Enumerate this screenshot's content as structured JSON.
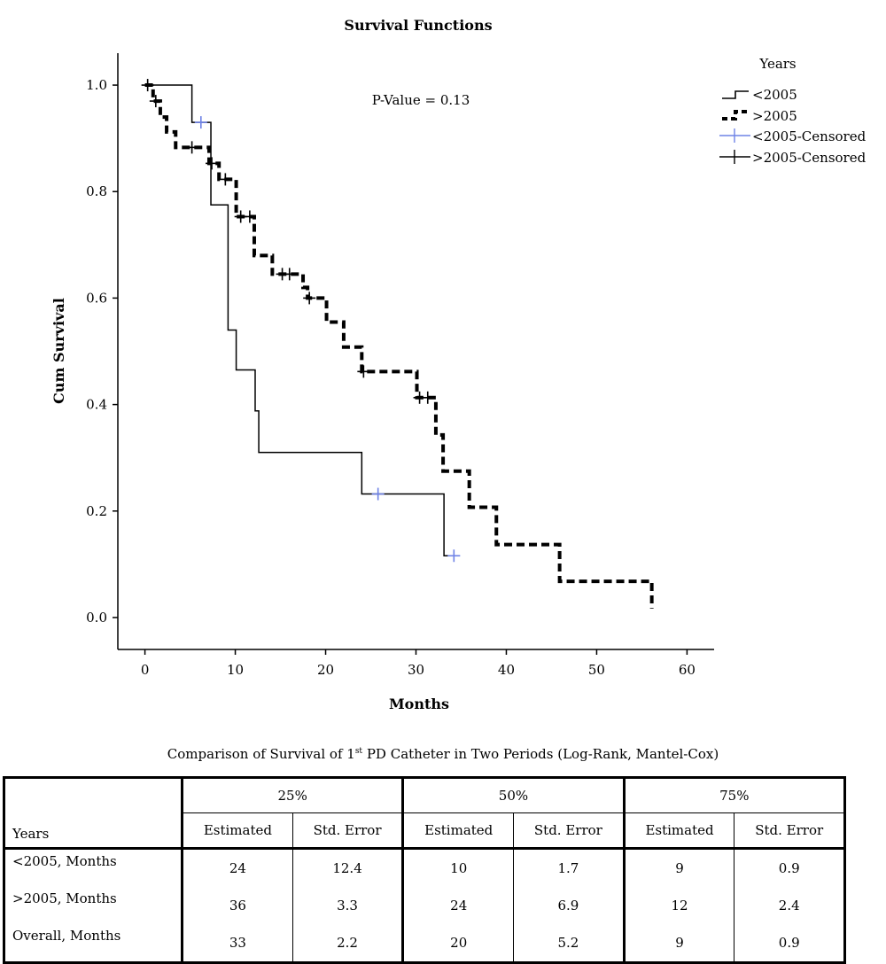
{
  "chart_data": {
    "type": "line",
    "title": "Survival Functions",
    "xlabel": "Months",
    "ylabel": "Cum Survival",
    "xlim": [
      -3,
      63
    ],
    "ylim": [
      -0.06,
      1.06
    ],
    "xticks": [
      0,
      10,
      20,
      30,
      40,
      50,
      60
    ],
    "yticks": [
      0.0,
      0.2,
      0.4,
      0.6,
      0.8,
      1.0
    ],
    "ytick_labels": [
      "0.0",
      "0.2",
      "0.4",
      "0.6",
      "0.8",
      "1.0"
    ],
    "grid": false,
    "annotation": "P-Value = 0.13",
    "legend": {
      "title": "Years",
      "placement": "top-right",
      "entries": [
        "<2005",
        ">2005",
        "<2005-Censored",
        ">2005-Censored"
      ]
    },
    "series": [
      {
        "name": "<2005",
        "style": "solid",
        "color": "#000000",
        "steps": [
          [
            0,
            1.0
          ],
          [
            5.2,
            0.93
          ],
          [
            7.3,
            0.775
          ],
          [
            9.2,
            0.54
          ],
          [
            10.1,
            0.465
          ],
          [
            12.2,
            0.388
          ],
          [
            12.6,
            0.31
          ],
          [
            24,
            0.232
          ],
          [
            33.1,
            0.116
          ]
        ],
        "end_x": 34.2
      },
      {
        "name": ">2005",
        "style": "dashed",
        "color": "#000000",
        "steps": [
          [
            0,
            1.0
          ],
          [
            0.9,
            0.97
          ],
          [
            1.7,
            0.94
          ],
          [
            2.4,
            0.912
          ],
          [
            3.4,
            0.883
          ],
          [
            7.1,
            0.853
          ],
          [
            8.2,
            0.823
          ],
          [
            10.1,
            0.753
          ],
          [
            12.1,
            0.68
          ],
          [
            14.1,
            0.645
          ],
          [
            17.5,
            0.62
          ],
          [
            18,
            0.6
          ],
          [
            20.1,
            0.555
          ],
          [
            22,
            0.508
          ],
          [
            24,
            0.462
          ],
          [
            30.1,
            0.413
          ],
          [
            32.2,
            0.343
          ],
          [
            33,
            0.275
          ],
          [
            35.9,
            0.207
          ],
          [
            38.9,
            0.137
          ],
          [
            45.9,
            0.068
          ],
          [
            56.1,
            0.017
          ]
        ],
        "end_x": 56.1
      }
    ],
    "censored": [
      {
        "name": "<2005-Censored",
        "color": "#6f83e6",
        "points": [
          [
            6.2,
            0.93
          ],
          [
            25.8,
            0.232
          ],
          [
            34.2,
            0.116
          ]
        ]
      },
      {
        "name": ">2005-Censored",
        "color": "#000000",
        "points": [
          [
            0.3,
            1.0
          ],
          [
            1.2,
            0.97
          ],
          [
            5.2,
            0.883
          ],
          [
            7.4,
            0.853
          ],
          [
            8.9,
            0.823
          ],
          [
            10.6,
            0.753
          ],
          [
            11.6,
            0.753
          ],
          [
            15.2,
            0.645
          ],
          [
            16,
            0.645
          ],
          [
            18.2,
            0.6
          ],
          [
            24.2,
            0.462
          ],
          [
            30.4,
            0.413
          ],
          [
            31.3,
            0.413
          ]
        ]
      }
    ]
  },
  "table": {
    "caption_pre": "Comparison of Survival of 1",
    "caption_sup": "st",
    "caption_post": " PD Catheter in Two Periods (Log-Rank, Mantel-Cox)",
    "groups": [
      "25%",
      "50%",
      "75%"
    ],
    "row_header": "Years",
    "subheaders": [
      "Estimated",
      "Std. Error",
      "Estimated",
      "Std. Error",
      "Estimated",
      "Std. Error"
    ],
    "rows": [
      {
        "label": "<2005, Months",
        "values": [
          "24",
          "12.4",
          "10",
          "1.7",
          "9",
          "0.9"
        ]
      },
      {
        "label": ">2005, Months",
        "values": [
          "36",
          "3.3",
          "24",
          "6.9",
          "12",
          "2.4"
        ]
      },
      {
        "label": "Overall, Months",
        "values": [
          "33",
          "2.2",
          "20",
          "5.2",
          "9",
          "0.9"
        ]
      }
    ]
  }
}
